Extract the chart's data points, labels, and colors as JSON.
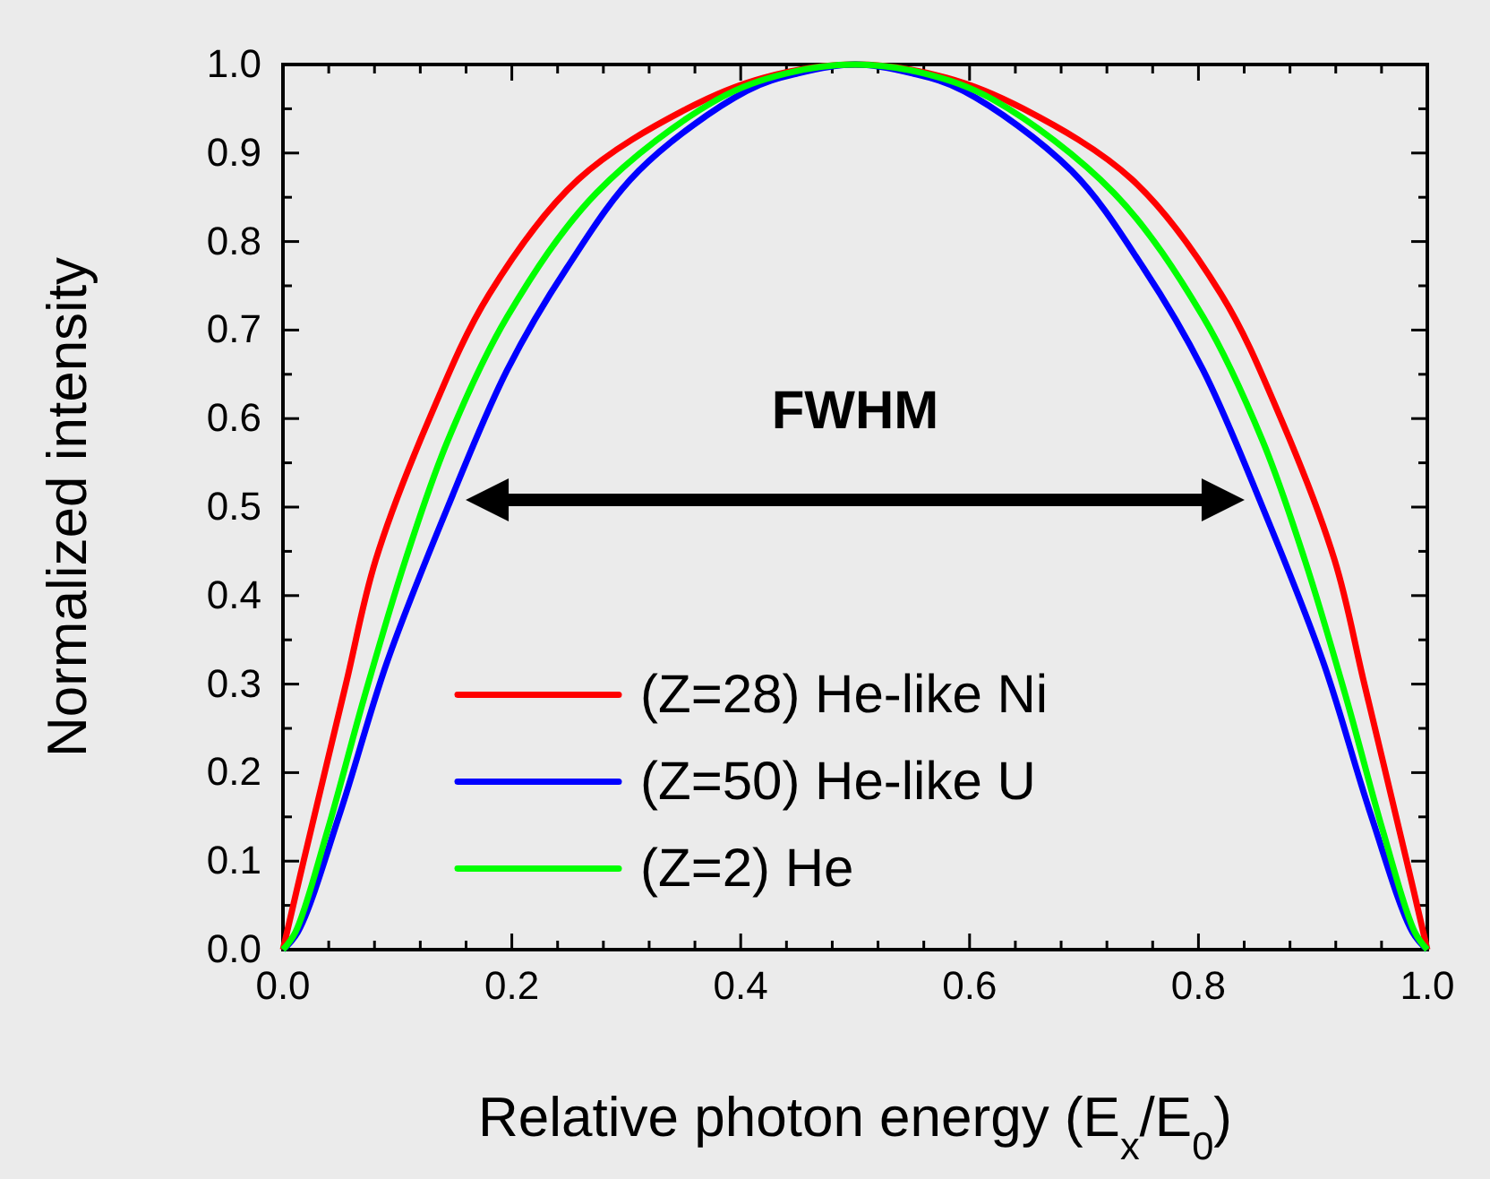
{
  "chart_data": {
    "type": "line",
    "xlabel": "Relative photon energy (E$_{x}$/E$_{0}$)",
    "ylabel": "Normalized intensity",
    "xlim": [
      0,
      1
    ],
    "ylim": [
      0,
      1.0
    ],
    "xticks": [
      {
        "value": 0,
        "label": "0.0"
      },
      {
        "value": 0.04,
        "label": null
      },
      {
        "value": 0.08,
        "label": null
      },
      {
        "value": 0.12,
        "label": null
      },
      {
        "value": 0.16,
        "label": null
      },
      {
        "value": 0.2,
        "label": "0.2"
      },
      {
        "value": 0.24,
        "label": null
      },
      {
        "value": 0.28,
        "label": null
      },
      {
        "value": 0.32,
        "label": null
      },
      {
        "value": 0.36,
        "label": null
      },
      {
        "value": 0.4,
        "label": "0.4"
      },
      {
        "value": 0.44,
        "label": null
      },
      {
        "value": 0.48,
        "label": null
      },
      {
        "value": 0.52,
        "label": null
      },
      {
        "value": 0.56,
        "label": null
      },
      {
        "value": 0.6,
        "label": "0.6"
      },
      {
        "value": 0.64,
        "label": null
      },
      {
        "value": 0.68,
        "label": null
      },
      {
        "value": 0.72,
        "label": null
      },
      {
        "value": 0.76,
        "label": null
      },
      {
        "value": 0.8,
        "label": "0.8"
      },
      {
        "value": 0.84,
        "label": null
      },
      {
        "value": 0.88,
        "label": null
      },
      {
        "value": 0.92,
        "label": null
      },
      {
        "value": 0.96,
        "label": null
      },
      {
        "value": 1,
        "label": "1.0"
      }
    ],
    "yticks": [
      {
        "value": 0,
        "label": "0.0"
      },
      {
        "value": 0.05,
        "label": null
      },
      {
        "value": 0.1,
        "label": "0.1"
      },
      {
        "value": 0.15,
        "label": null
      },
      {
        "value": 0.2,
        "label": "0.2"
      },
      {
        "value": 0.25,
        "label": null
      },
      {
        "value": 0.3,
        "label": "0.3"
      },
      {
        "value": 0.35,
        "label": null
      },
      {
        "value": 0.4,
        "label": "0.4"
      },
      {
        "value": 0.45,
        "label": null
      },
      {
        "value": 0.5,
        "label": "0.5"
      },
      {
        "value": 0.55,
        "label": null
      },
      {
        "value": 0.6,
        "label": "0.6"
      },
      {
        "value": 0.65,
        "label": null
      },
      {
        "value": 0.7,
        "label": "0.7"
      },
      {
        "value": 0.75,
        "label": null
      },
      {
        "value": 0.8,
        "label": "0.8"
      },
      {
        "value": 0.85,
        "label": null
      },
      {
        "value": 0.9,
        "label": "0.9"
      },
      {
        "value": 0.95,
        "label": null
      },
      {
        "value": 1.0,
        "label": "1.0"
      }
    ],
    "grid": false,
    "legend": "bottom",
    "line_style": "solid",
    "marker": "none",
    "annotations": [
      "FWHM"
    ],
    "series": [
      {
        "name": "(Z=28) He-like Ni",
        "color": "#ff0000",
        "x": [
          0,
          0.018,
          0.055,
          0.081,
          0.128,
          0.18,
          0.258,
          0.353,
          0.42,
          0.5,
          0.58,
          0.647,
          0.742,
          0.82,
          0.872,
          0.919,
          0.945,
          0.982,
          1
        ],
        "values": [
          0,
          0.1,
          0.3,
          0.44,
          0.6,
          0.74,
          0.87,
          0.95,
          0.985,
          1.0,
          0.985,
          0.95,
          0.87,
          0.74,
          0.6,
          0.44,
          0.3,
          0.1,
          0
        ]
      },
      {
        "name": "(Z=50) He-like U",
        "color": "#0000ff",
        "x": [
          0,
          0.013,
          0.05,
          0.091,
          0.144,
          0.196,
          0.248,
          0.311,
          0.405,
          0.45,
          0.5,
          0.55,
          0.595,
          0.689,
          0.752,
          0.804,
          0.856,
          0.909,
          0.95,
          0.987,
          1
        ],
        "values": [
          0,
          0.02,
          0.155,
          0.325,
          0.5,
          0.655,
          0.77,
          0.88,
          0.97,
          0.99,
          1.0,
          0.99,
          0.97,
          0.88,
          0.77,
          0.655,
          0.5,
          0.325,
          0.155,
          0.02,
          0
        ]
      },
      {
        "name": "(Z=2) He",
        "color": "#00ff00",
        "x": [
          0,
          0.011,
          0.039,
          0.071,
          0.107,
          0.144,
          0.196,
          0.274,
          0.379,
          0.44,
          0.5,
          0.56,
          0.621,
          0.726,
          0.804,
          0.856,
          0.893,
          0.929,
          0.961,
          0.989,
          1
        ],
        "values": [
          0,
          0.02,
          0.135,
          0.285,
          0.44,
          0.575,
          0.715,
          0.855,
          0.96,
          0.99,
          1.0,
          0.99,
          0.96,
          0.855,
          0.715,
          0.575,
          0.44,
          0.285,
          0.135,
          0.02,
          0
        ]
      }
    ]
  }
}
